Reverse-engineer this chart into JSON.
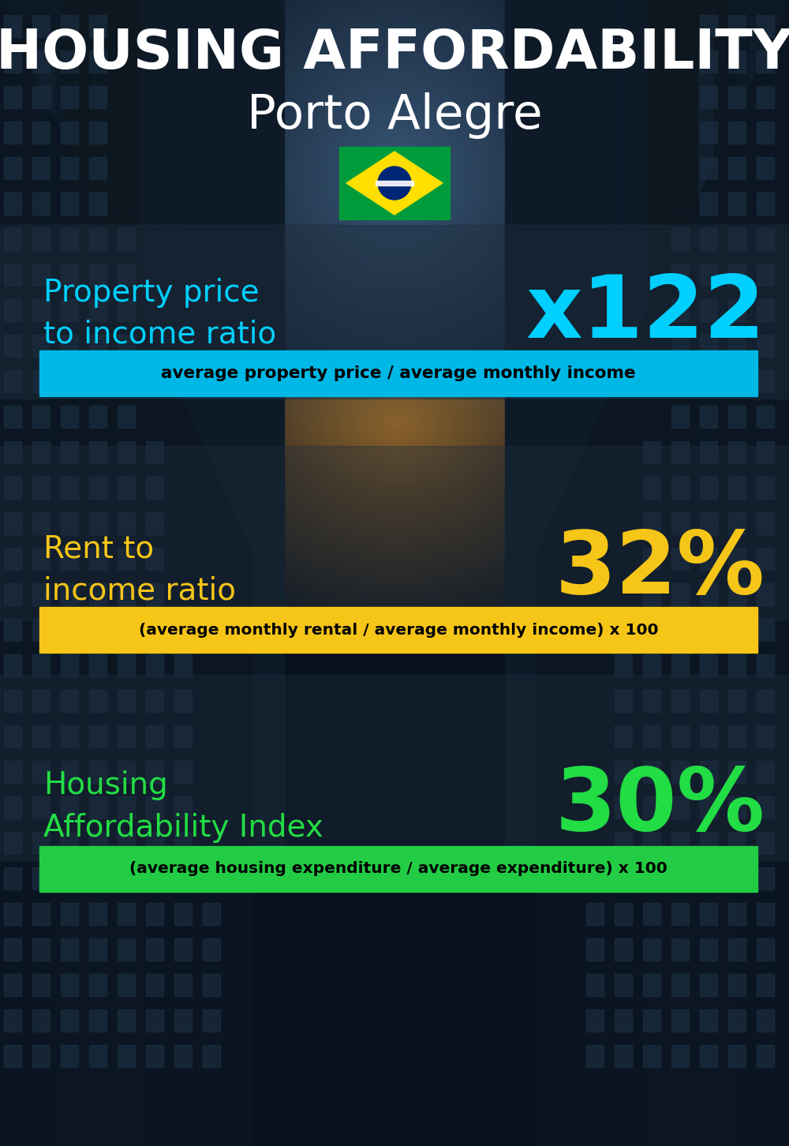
{
  "title_line1": "HOUSING AFFORDABILITY",
  "title_line2": "Porto Alegre",
  "bg_color": "#0a1020",
  "section1_label": "Property price\nto income ratio",
  "section1_value": "x122",
  "section1_label_color": "#00cfff",
  "section1_value_color": "#00cfff",
  "section1_bar_text": "average property price / average monthly income",
  "section1_bar_color": "#00b8e6",
  "section2_label": "Rent to\nincome ratio",
  "section2_value": "32%",
  "section2_label_color": "#f5c518",
  "section2_value_color": "#f5c518",
  "section2_bar_text": "(average monthly rental / average monthly income) x 100",
  "section2_bar_color": "#f5c518",
  "section3_label": "Housing\nAffordability Index",
  "section3_value": "30%",
  "section3_label_color": "#22dd44",
  "section3_value_color": "#22dd44",
  "section3_bar_text": "(average housing expenditure / average expenditure) x 100",
  "section3_bar_color": "#22cc44",
  "title_color": "#ffffff",
  "subtitle_color": "#ffffff",
  "panel_color": "#1a2535",
  "panel_alpha": 0.55
}
